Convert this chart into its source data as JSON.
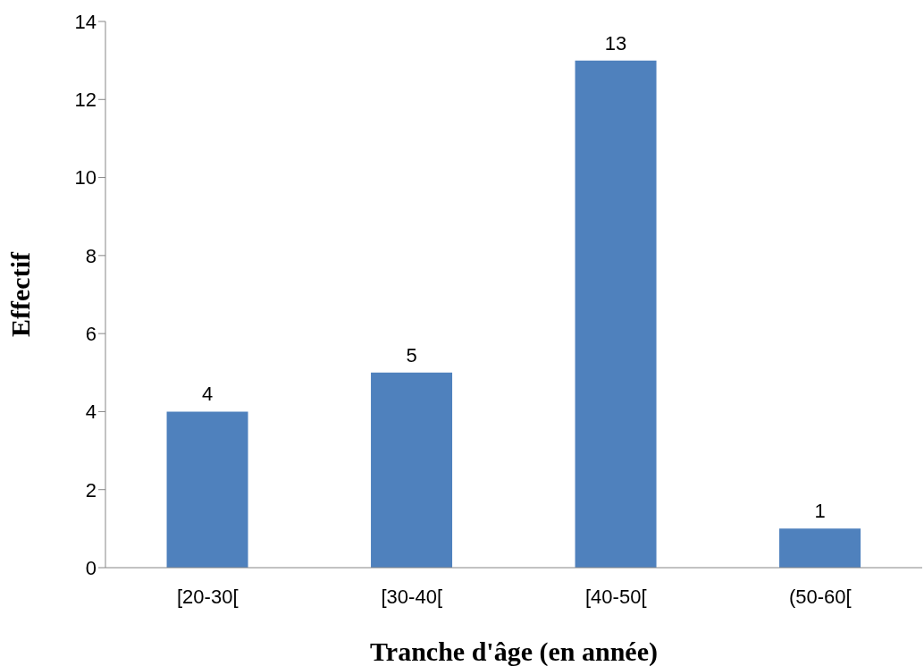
{
  "chart_data": {
    "type": "bar",
    "xlabel": "Tranche d'âge (en année)",
    "ylabel": "Effectif",
    "categories": [
      "[20-30[",
      "[30-40[",
      "[40-50[",
      "(50-60["
    ],
    "values": [
      4,
      5,
      13,
      1
    ],
    "color": "#4f81bd",
    "ylim": [
      0,
      14
    ],
    "yticks": [
      0,
      2,
      4,
      6,
      8,
      10,
      12,
      14
    ],
    "grid": false,
    "data_labels": true
  }
}
